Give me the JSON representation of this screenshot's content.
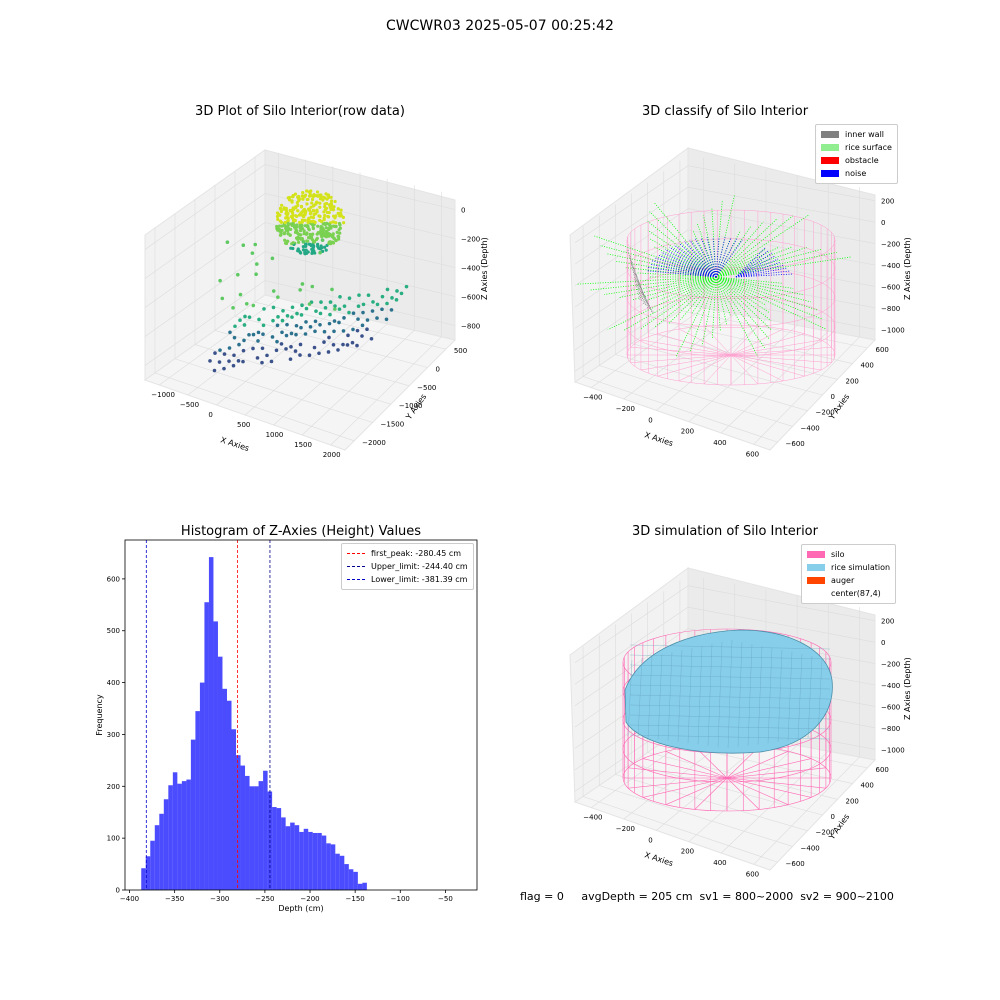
{
  "suptitle": "CWCWR03 2025-05-07 00:25:42",
  "footer": "flag = 0     avgDepth = 205 cm  sv1 = 800~2000  sv2 = 900~2100",
  "panels": {
    "raw": {
      "title": "3D Plot of Silo Interior(row data)",
      "xlabel": "X Axies",
      "ylabel": "Y Axies",
      "zlabel": "Z Axies (Depth)",
      "xticks": [
        "-1000",
        "-500",
        "0",
        "500",
        "1000",
        "1500",
        "2000"
      ],
      "yticks": [
        "500",
        "0",
        "-500",
        "-1000",
        "-1500",
        "-2000"
      ],
      "zticks": [
        "0",
        "-200",
        "-400",
        "-600",
        "-800"
      ]
    },
    "classify": {
      "title": "3D classify of Silo Interior",
      "xlabel": "X Axies",
      "ylabel": "Y Axies",
      "zlabel": "Z Axies (Depth)",
      "xticks": [
        "-400",
        "-200",
        "0",
        "200",
        "400",
        "600"
      ],
      "yticks": [
        "600",
        "400",
        "200",
        "0",
        "-200",
        "-400",
        "-600"
      ],
      "zticks": [
        "200",
        "0",
        "-200",
        "-400",
        "-600",
        "-800",
        "-1000"
      ],
      "legend": [
        {
          "label": "inner wall",
          "color": "#808080"
        },
        {
          "label": "rice surface",
          "color": "#90ee90"
        },
        {
          "label": "obstacle",
          "color": "#ff0000"
        },
        {
          "label": "noise",
          "color": "#0000ff"
        }
      ]
    },
    "simulation": {
      "title": "3D simulation of Silo Interior",
      "xlabel": "X Axies",
      "ylabel": "Y Axies",
      "zlabel": "Z Axies (Depth)",
      "xticks": [
        "-400",
        "-200",
        "0",
        "200",
        "400",
        "600"
      ],
      "yticks": [
        "600",
        "400",
        "200",
        "0",
        "-200",
        "-400",
        "-600"
      ],
      "zticks": [
        "200",
        "0",
        "-200",
        "-400",
        "-600",
        "-800",
        "-1000"
      ],
      "legend": [
        {
          "label": "silo",
          "color": "#ff69b4"
        },
        {
          "label": "rice simulation",
          "color": "#87ceeb"
        },
        {
          "label": "auger",
          "color": "#ff4500"
        },
        {
          "label": "center(87,4)",
          "color": ""
        }
      ]
    }
  },
  "chart_data": {
    "type": "bar",
    "title": "Histogram of Z-Axies (Height) Values",
    "xlabel": "Depth (cm)",
    "ylabel": "Frequency",
    "xlim": [
      -405,
      -15
    ],
    "ylim": [
      0,
      675
    ],
    "xticks": [
      -400,
      -350,
      -300,
      -250,
      -200,
      -150,
      -100,
      -50
    ],
    "yticks": [
      0,
      100,
      200,
      300,
      400,
      500,
      600
    ],
    "bar_color": "#0000ff",
    "bin_start": -387,
    "bin_width": 5.0,
    "values": [
      42,
      65,
      95,
      125,
      147,
      175,
      202,
      227,
      205,
      210,
      213,
      290,
      345,
      400,
      555,
      642,
      518,
      450,
      388,
      365,
      310,
      260,
      240,
      220,
      200,
      200,
      210,
      230,
      190,
      160,
      158,
      140,
      123,
      130,
      125,
      112,
      118,
      112,
      110,
      110,
      105,
      90,
      88,
      70,
      66,
      50,
      40,
      35,
      12,
      14
    ],
    "lines": [
      {
        "label": "first_peak: -280.45 cm",
        "x": -280.45,
        "color": "#ff0000"
      },
      {
        "label": "Upper_limit: -244.40 cm",
        "x": -244.4,
        "color": "#00008b"
      },
      {
        "label": "Lower_limit: -381.39 cm",
        "x": -381.39,
        "color": "#0000cd"
      }
    ]
  }
}
